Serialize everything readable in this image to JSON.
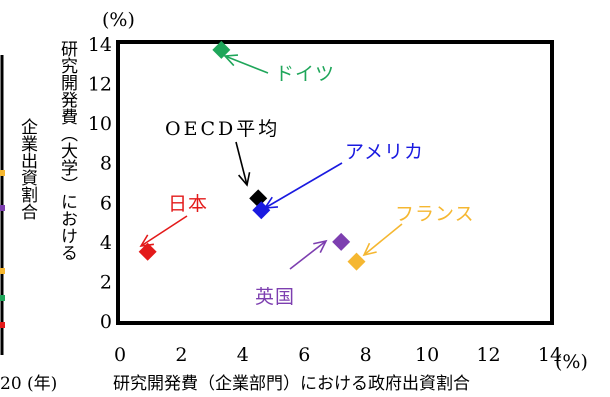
{
  "chart_data": {
    "type": "scatter",
    "xlabel": "研究開発費（企業部門）における政府出資割合",
    "ylabel": "研究開発費（大学）における",
    "x_unit": "(%)",
    "y_unit": "(%)",
    "xlim": [
      0,
      14
    ],
    "ylim": [
      0,
      14
    ],
    "x_ticks": [
      "0",
      "2",
      "4",
      "6",
      "8",
      "10",
      "12",
      "14"
    ],
    "y_ticks": [
      "0",
      "2",
      "4",
      "6",
      "8",
      "10",
      "12",
      "14"
    ],
    "grid": false,
    "points": [
      {
        "name": "日本",
        "x": 0.9,
        "y": 3.5,
        "color": "#e31a1a"
      },
      {
        "name": "ドイツ",
        "x": 3.3,
        "y": 13.7,
        "color": "#1fa65a"
      },
      {
        "name": "OECD平均",
        "x": 4.5,
        "y": 6.2,
        "color": "#000000"
      },
      {
        "name": "アメリカ",
        "x": 4.6,
        "y": 5.6,
        "color": "#1a1ae0"
      },
      {
        "name": "英国",
        "x": 7.2,
        "y": 4.0,
        "color": "#7d3fb0"
      },
      {
        "name": "フランス",
        "x": 7.7,
        "y": 3.0,
        "color": "#f5b731"
      }
    ]
  },
  "left_fragment": {
    "ylabel": "企業出資割合",
    "year_label": "20 (年)"
  }
}
